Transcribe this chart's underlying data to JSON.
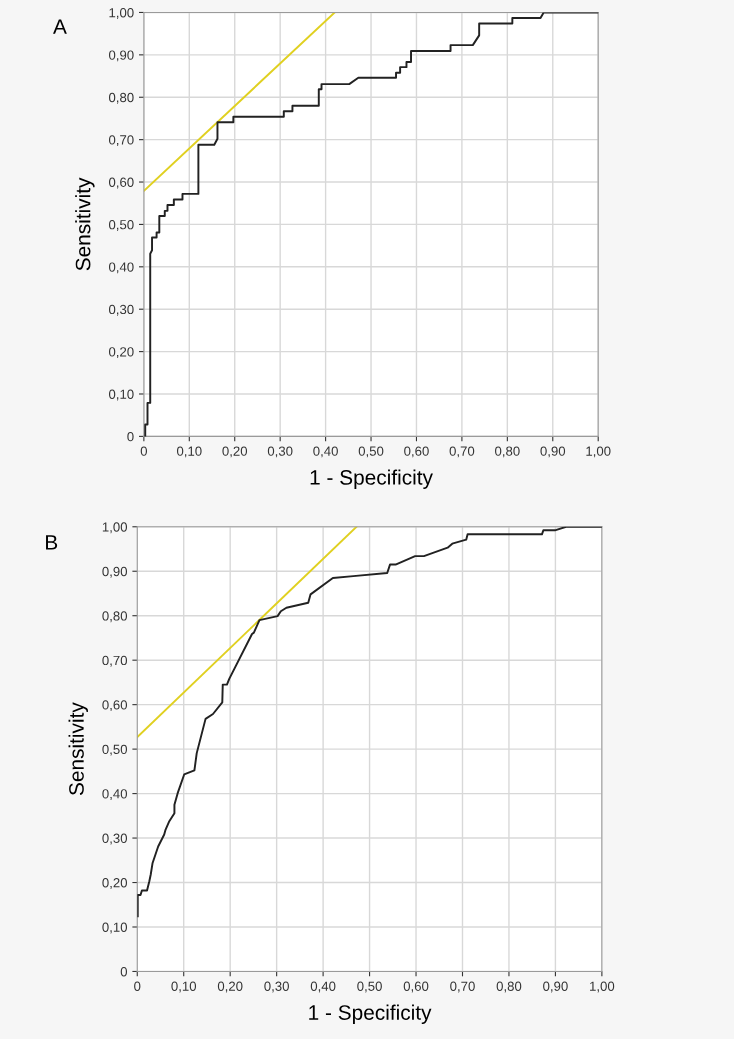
{
  "chart_data": [
    {
      "type": "line",
      "title": "A",
      "xlabel": "1 - Specificity",
      "ylabel": "Sensitivity",
      "xlim": [
        0,
        1
      ],
      "ylim": [
        0,
        1
      ],
      "xticks": [
        0,
        {
          "value": 0.1,
          "label": "0,10"
        },
        {
          "value": 0.2,
          "label": "0,20"
        },
        {
          "value": 0.3,
          "label": "0,30"
        },
        {
          "value": 0.4,
          "label": "0,40"
        },
        {
          "value": 0.5,
          "label": "0,50"
        },
        {
          "value": 0.6,
          "label": "0,60"
        },
        {
          "value": 0.7,
          "label": "0,70"
        },
        {
          "value": 0.8,
          "label": "0,80"
        },
        {
          "value": 0.9,
          "label": "0,90"
        },
        {
          "value": 1,
          "label": "1,00"
        }
      ],
      "yticks": [
        0,
        {
          "value": 0.1,
          "label": "0,10"
        },
        {
          "value": 0.2,
          "label": "0,20"
        },
        {
          "value": 0.3,
          "label": "0,30"
        },
        {
          "value": 0.4,
          "label": "0,40"
        },
        {
          "value": 0.5,
          "label": "0,50"
        },
        {
          "value": 0.6,
          "label": "0,60"
        },
        {
          "value": 0.7,
          "label": "0,70"
        },
        {
          "value": 0.8,
          "label": "0,80"
        },
        {
          "value": 0.9,
          "label": "0,90"
        },
        {
          "value": 1,
          "label": "1,00"
        }
      ],
      "grid": true,
      "marker": "none",
      "line_style": "solid",
      "series": [
        {
          "color": "#222222",
          "x": [
            0.003,
            0.003,
            0.008,
            0.008,
            0.014,
            0.014,
            0.018,
            0.018,
            0.028,
            0.028,
            0.034,
            0.034,
            0.046,
            0.046,
            0.052,
            0.052,
            0.066,
            0.066,
            0.085,
            0.085,
            0.12,
            0.12,
            0.155,
            0.162,
            0.162,
            0.197,
            0.197,
            0.308,
            0.308,
            0.327,
            0.327,
            0.385,
            0.385,
            0.391,
            0.391,
            0.452,
            0.472,
            0.555,
            0.555,
            0.564,
            0.564,
            0.578,
            0.578,
            0.588,
            0.588,
            0.675,
            0.675,
            0.724,
            0.738,
            0.738,
            0.811,
            0.811,
            0.873,
            0.88,
            1.0
          ],
          "values": [
            0,
            0.028,
            0.028,
            0.079,
            0.079,
            0.431,
            0.439,
            0.469,
            0.469,
            0.481,
            0.481,
            0.52,
            0.52,
            0.532,
            0.532,
            0.546,
            0.546,
            0.559,
            0.559,
            0.572,
            0.572,
            0.688,
            0.688,
            0.702,
            0.741,
            0.741,
            0.754,
            0.754,
            0.767,
            0.767,
            0.78,
            0.78,
            0.819,
            0.819,
            0.831,
            0.831,
            0.846,
            0.846,
            0.858,
            0.858,
            0.871,
            0.871,
            0.883,
            0.883,
            0.909,
            0.909,
            0.923,
            0.923,
            0.946,
            0.974,
            0.974,
            0.987,
            0.987,
            1.0,
            1.0
          ]
        },
        {
          "color": "#e0d020",
          "x": [
            0,
            0.42
          ],
          "values": [
            0.579,
            1.0
          ]
        }
      ]
    },
    {
      "type": "line",
      "title": "B",
      "xlabel": "1 - Specificity",
      "ylabel": "Sensitivity",
      "xlim": [
        0,
        1
      ],
      "ylim": [
        0,
        1
      ],
      "xticks": [
        0,
        {
          "value": 0.1,
          "label": "0,10"
        },
        {
          "value": 0.2,
          "label": "0,20"
        },
        {
          "value": 0.3,
          "label": "0,30"
        },
        {
          "value": 0.4,
          "label": "0,40"
        },
        {
          "value": 0.5,
          "label": "0,50"
        },
        {
          "value": 0.6,
          "label": "0,60"
        },
        {
          "value": 0.7,
          "label": "0,70"
        },
        {
          "value": 0.8,
          "label": "0,80"
        },
        {
          "value": 0.9,
          "label": "0,90"
        },
        {
          "value": 1,
          "label": "1,00"
        }
      ],
      "yticks": [
        0,
        {
          "value": 0.1,
          "label": "0,10"
        },
        {
          "value": 0.2,
          "label": "0,20"
        },
        {
          "value": 0.3,
          "label": "0,30"
        },
        {
          "value": 0.4,
          "label": "0,40"
        },
        {
          "value": 0.5,
          "label": "0,50"
        },
        {
          "value": 0.6,
          "label": "0,60"
        },
        {
          "value": 0.7,
          "label": "0,70"
        },
        {
          "value": 0.8,
          "label": "0,80"
        },
        {
          "value": 0.9,
          "label": "0,90"
        },
        {
          "value": 1,
          "label": "1,00"
        }
      ],
      "grid": true,
      "marker": "none",
      "line_style": "solid",
      "series": [
        {
          "color": "#222222",
          "x": [
            0.001,
            0.001,
            0.007,
            0.01,
            0.021,
            0.026,
            0.029,
            0.033,
            0.045,
            0.058,
            0.061,
            0.069,
            0.08,
            0.08,
            0.087,
            0.101,
            0.123,
            0.128,
            0.147,
            0.163,
            0.183,
            0.184,
            0.193,
            0.198,
            0.247,
            0.251,
            0.263,
            0.302,
            0.309,
            0.321,
            0.368,
            0.373,
            0.421,
            0.465,
            0.538,
            0.544,
            0.556,
            0.598,
            0.617,
            0.668,
            0.678,
            0.708,
            0.711,
            0.871,
            0.874,
            0.899,
            0.923,
            1.0
          ],
          "values": [
            0.124,
            0.172,
            0.172,
            0.182,
            0.182,
            0.203,
            0.218,
            0.244,
            0.281,
            0.308,
            0.319,
            0.338,
            0.356,
            0.375,
            0.401,
            0.443,
            0.452,
            0.491,
            0.568,
            0.579,
            0.605,
            0.645,
            0.645,
            0.658,
            0.759,
            0.762,
            0.79,
            0.799,
            0.81,
            0.818,
            0.829,
            0.848,
            0.885,
            0.889,
            0.896,
            0.915,
            0.915,
            0.934,
            0.934,
            0.953,
            0.962,
            0.971,
            0.983,
            0.983,
            0.992,
            0.992,
            1.0,
            1.0
          ]
        },
        {
          "color": "#e0d020",
          "x": [
            0,
            0.472
          ],
          "values": [
            0.527,
            1.0
          ]
        }
      ]
    }
  ]
}
